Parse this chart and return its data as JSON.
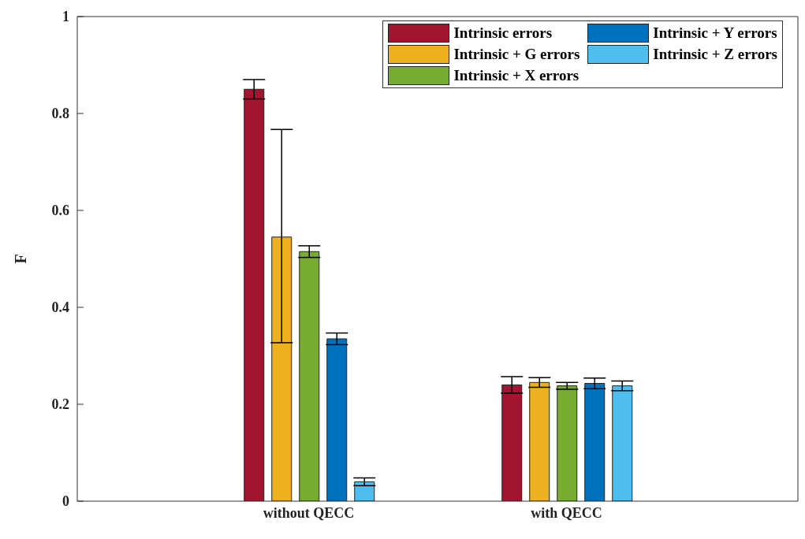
{
  "chart_data": {
    "type": "bar",
    "ylabel": "F",
    "categories": [
      "without QECC",
      "with QECC"
    ],
    "series": [
      {
        "name": "Intrinsic errors",
        "color": "#a2142f",
        "values": [
          0.85,
          0.24
        ],
        "errors": [
          0.02,
          0.017
        ]
      },
      {
        "name": "Intrinsic +  G errors",
        "color": "#edb120",
        "values": [
          0.545,
          0.245
        ],
        "errors": [
          [
            0.327,
            0.767
          ],
          0.01
        ]
      },
      {
        "name": "Intrinsic +  X errors",
        "color": "#77ac30",
        "values": [
          0.515,
          0.238
        ],
        "errors": [
          0.012,
          0.007
        ]
      },
      {
        "name": "Intrinsic +  Y errors",
        "color": "#0072bd",
        "values": [
          0.335,
          0.243
        ],
        "errors": [
          0.012,
          0.011
        ]
      },
      {
        "name": "Intrinsic +  Z errors",
        "color": "#4dbeee",
        "values": [
          0.04,
          0.238
        ],
        "errors": [
          0.008,
          0.01
        ]
      }
    ],
    "ylim": [
      0,
      1
    ],
    "yticks": [
      0,
      0.2,
      0.4,
      0.6,
      0.8,
      1
    ],
    "grid": false,
    "legend": "top right"
  }
}
